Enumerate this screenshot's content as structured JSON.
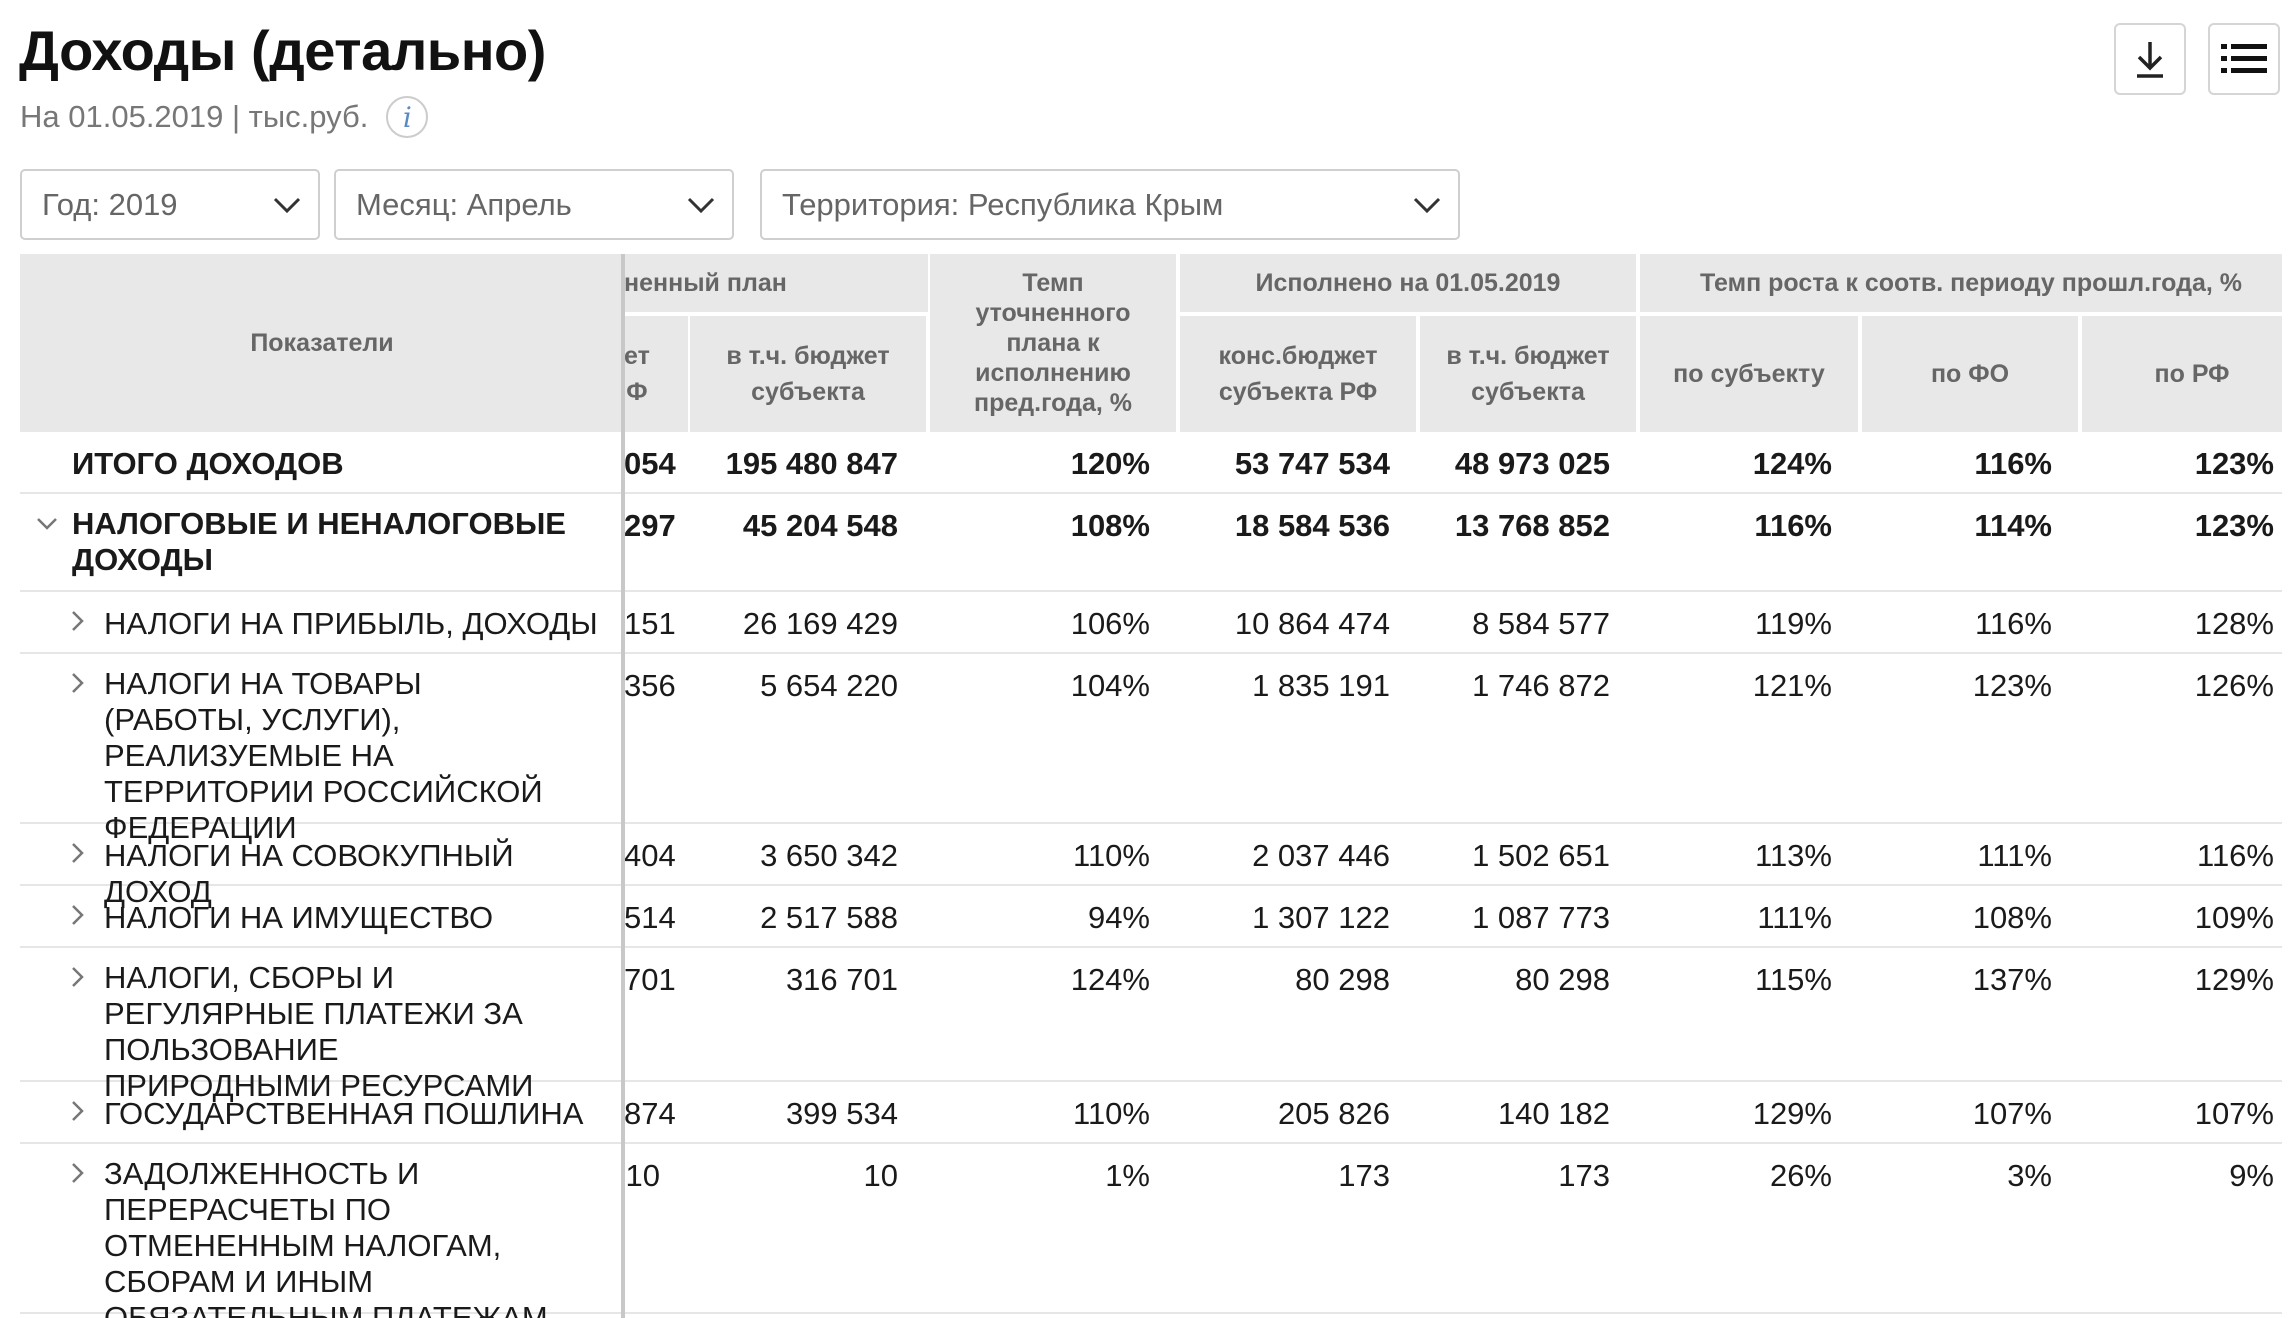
{
  "header": {
    "title": "Доходы (детально)",
    "subtitle": "На 01.05.2019 | тыс.руб.",
    "info_glyph": "i"
  },
  "toolbar": {
    "download_icon": "download-icon",
    "list_icon": "list-icon"
  },
  "filters": {
    "year": "Год: 2019",
    "month": "Месяц: Апрель",
    "territory": "Территория: Республика Крым"
  },
  "table": {
    "headers": {
      "indicators": "Показатели",
      "plan_group": "ненный план",
      "plan_col1": "ет\nФ",
      "plan_col2": "в т.ч. бюджет субъекта",
      "rate": "Темп уточненного плана к исполнению пред.года, %",
      "executed_group": "Исполнено на 01.05.2019",
      "exec_col1": "конс.бюджет субъекта РФ",
      "exec_col2": "в т.ч. бюджет субъекта",
      "growth_group": "Темп роста к соотв. периоду прошл.года, %",
      "growth_subject": "по субъекту",
      "growth_fo": "по ФО",
      "growth_rf": "по РФ"
    },
    "rows": [
      {
        "label": "ИТОГО ДОХОДОВ",
        "c1": "054",
        "c2": "195 480 847",
        "c3": "120%",
        "c4": "53 747 534",
        "c5": "48 973 025",
        "c6": "124%",
        "c7": "116%",
        "c8": "123%"
      },
      {
        "label": "НАЛОГОВЫЕ И НЕНАЛОГОВЫЕ ДОХОДЫ",
        "c1": "297",
        "c2": "45 204 548",
        "c3": "108%",
        "c4": "18 584 536",
        "c5": "13 768 852",
        "c6": "116%",
        "c7": "114%",
        "c8": "123%"
      },
      {
        "label": "НАЛОГИ НА ПРИБЫЛЬ, ДОХОДЫ",
        "c1": "151",
        "c2": "26 169 429",
        "c3": "106%",
        "c4": "10 864 474",
        "c5": "8 584 577",
        "c6": "119%",
        "c7": "116%",
        "c8": "128%"
      },
      {
        "label": "НАЛОГИ НА ТОВАРЫ (РАБОТЫ, УСЛУГИ), РЕАЛИЗУЕМЫЕ НА ТЕРРИТОРИИ РОССИЙСКОЙ ФЕДЕРАЦИИ",
        "c1": "356",
        "c2": "5 654 220",
        "c3": "104%",
        "c4": "1 835 191",
        "c5": "1 746 872",
        "c6": "121%",
        "c7": "123%",
        "c8": "126%"
      },
      {
        "label": "НАЛОГИ НА СОВОКУПНЫЙ ДОХОД",
        "c1": "404",
        "c2": "3 650 342",
        "c3": "110%",
        "c4": "2 037 446",
        "c5": "1 502 651",
        "c6": "113%",
        "c7": "111%",
        "c8": "116%"
      },
      {
        "label": "НАЛОГИ НА ИМУЩЕСТВО",
        "c1": "514",
        "c2": "2 517 588",
        "c3": "94%",
        "c4": "1 307 122",
        "c5": "1 087 773",
        "c6": "111%",
        "c7": "108%",
        "c8": "109%"
      },
      {
        "label": "НАЛОГИ, СБОРЫ И РЕГУЛЯРНЫЕ ПЛАТЕЖИ ЗА ПОЛЬЗОВАНИЕ ПРИРОДНЫМИ РЕСУРСАМИ",
        "c1": "701",
        "c2": "316 701",
        "c3": "124%",
        "c4": "80 298",
        "c5": "80 298",
        "c6": "115%",
        "c7": "137%",
        "c8": "129%"
      },
      {
        "label": "ГОСУДАРСТВЕННАЯ ПОШЛИНА",
        "c1": "874",
        "c2": "399 534",
        "c3": "110%",
        "c4": "205 826",
        "c5": "140 182",
        "c6": "129%",
        "c7": "107%",
        "c8": "107%"
      },
      {
        "label": "ЗАДОЛЖЕННОСТЬ И ПЕРЕРАСЧЕТЫ ПО ОТМЕНЕННЫМ НАЛОГАМ, СБОРАМ И ИНЫМ ОБЯЗАТЕЛЬНЫМ ПЛАТЕЖАМ",
        "c1": "10",
        "c2": "10",
        "c3": "1%",
        "c4": "173",
        "c5": "173",
        "c6": "26%",
        "c7": "3%",
        "c8": "9%"
      }
    ]
  }
}
